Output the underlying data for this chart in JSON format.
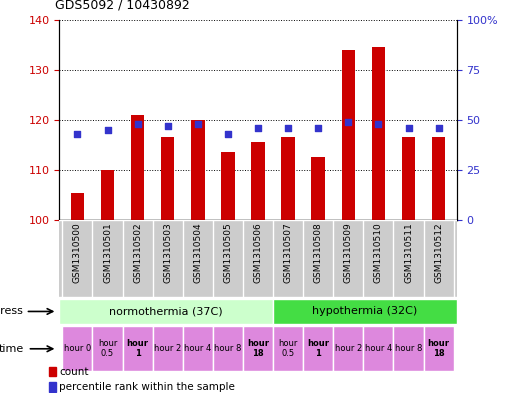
{
  "title": "GDS5092 / 10430892",
  "samples": [
    "GSM1310500",
    "GSM1310501",
    "GSM1310502",
    "GSM1310503",
    "GSM1310504",
    "GSM1310505",
    "GSM1310506",
    "GSM1310507",
    "GSM1310508",
    "GSM1310509",
    "GSM1310510",
    "GSM1310511",
    "GSM1310512"
  ],
  "counts": [
    105.5,
    110.0,
    121.0,
    116.5,
    120.0,
    113.5,
    115.5,
    116.5,
    112.5,
    134.0,
    134.5,
    116.5,
    116.5
  ],
  "percentiles": [
    43,
    45,
    48,
    47,
    48,
    43,
    46,
    46,
    46,
    49,
    48,
    46,
    46
  ],
  "ylim_left": [
    100,
    140
  ],
  "ylim_right": [
    0,
    100
  ],
  "yticks_left": [
    100,
    110,
    120,
    130,
    140
  ],
  "yticks_right": [
    0,
    25,
    50,
    75,
    100
  ],
  "bar_color": "#cc0000",
  "dot_color": "#3333cc",
  "stress_labels": [
    "normothermia (37C)",
    "hypothermia (32C)"
  ],
  "stress_colors": [
    "#ccffcc",
    "#44dd44"
  ],
  "stress_split": 7,
  "time_labels": [
    "hour 0",
    "hour\n0.5",
    "hour\n1",
    "hour 2",
    "hour 4",
    "hour 8",
    "hour\n18",
    "hour\n0.5",
    "hour\n1",
    "hour 2",
    "hour 4",
    "hour 8",
    "hour\n18"
  ],
  "time_color": "#dd88dd",
  "time_bold_indices": [
    2,
    6,
    8,
    12
  ],
  "legend_count_color": "#cc0000",
  "legend_dot_color": "#3333cc",
  "sample_bg": "#cccccc",
  "bar_width": 0.45
}
